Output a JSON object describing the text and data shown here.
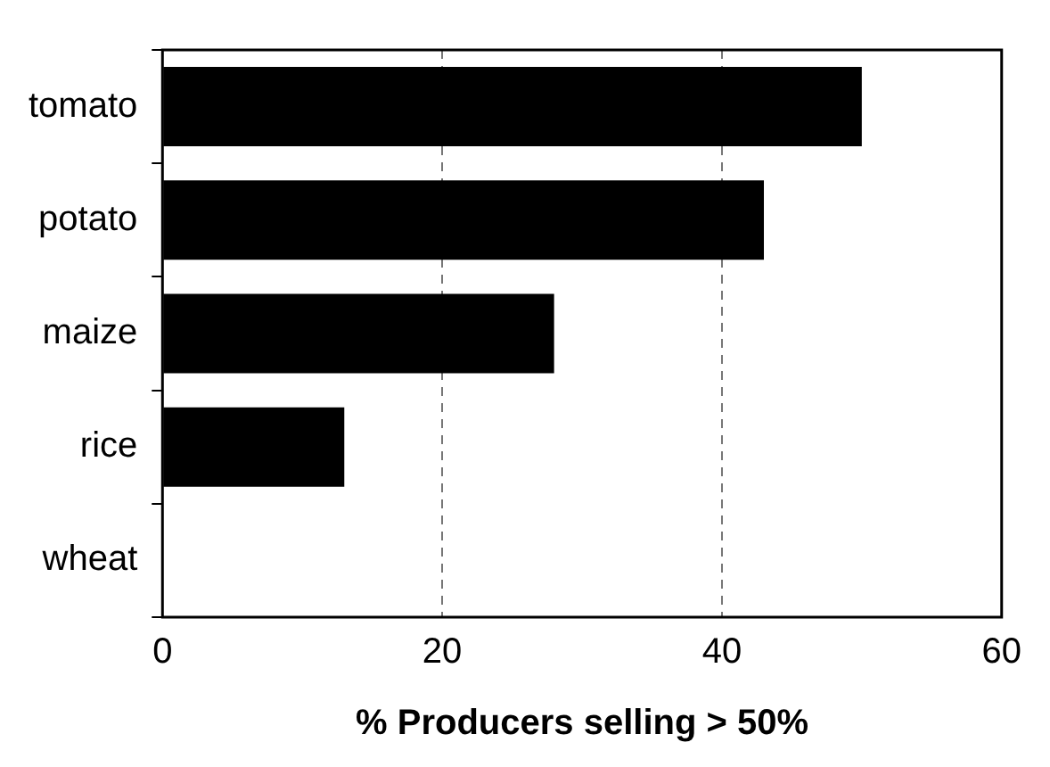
{
  "chart_data": {
    "type": "bar",
    "orientation": "horizontal",
    "xlabel": "% Producers selling > 50%",
    "categories": [
      "tomato",
      "potato",
      "maize",
      "rice",
      "wheat"
    ],
    "values": [
      50,
      43,
      28,
      13,
      0
    ],
    "color": "#000000",
    "xlim": [
      0,
      60
    ],
    "xticks": [
      0,
      20,
      40,
      60
    ],
    "grid": "x"
  }
}
